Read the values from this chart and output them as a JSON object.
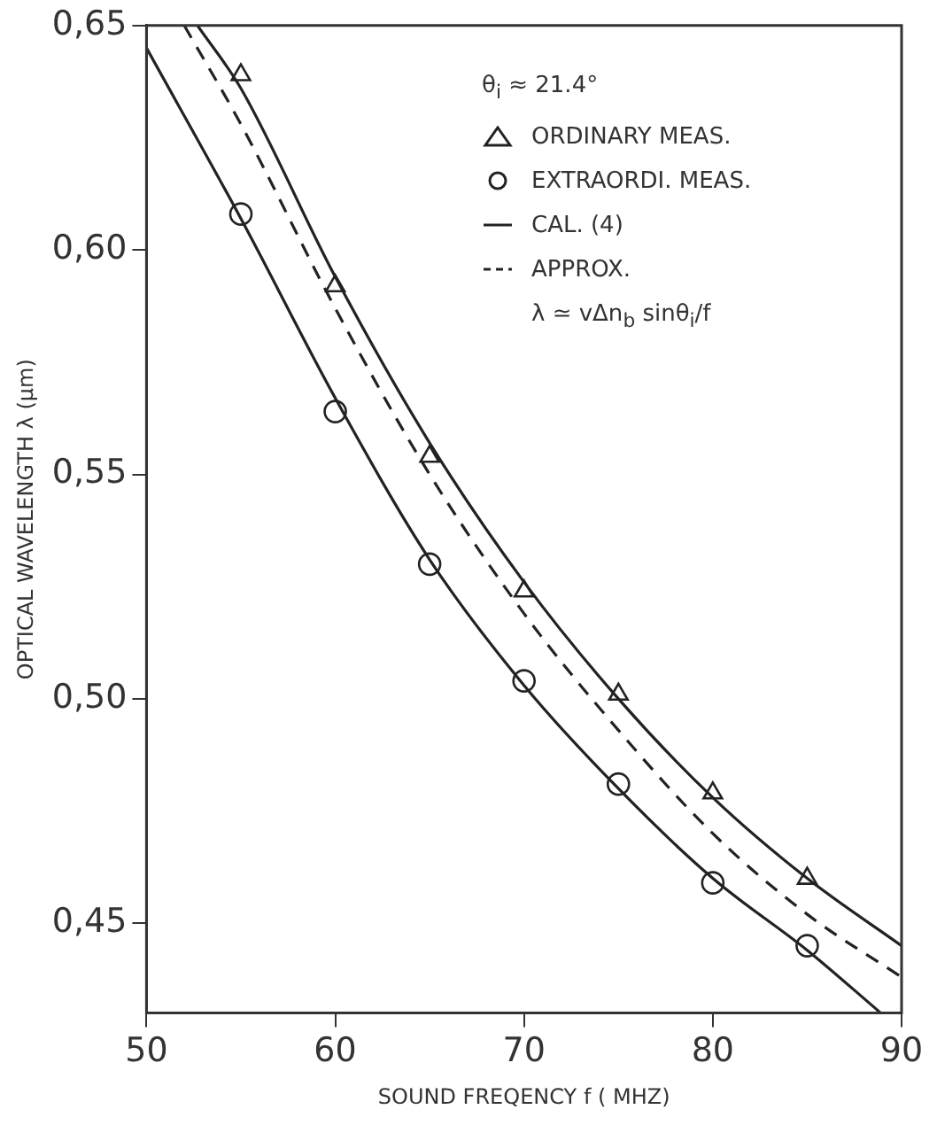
{
  "chart_data": {
    "type": "line",
    "xlabel": "SOUND FREQENCY f ( MHZ)",
    "ylabel": "OPTICAL WAVELENGTH λ (μm)",
    "xlim": [
      50,
      90
    ],
    "xticks": [
      50,
      60,
      70,
      80,
      90
    ],
    "ylim": [
      0.43,
      0.65
    ],
    "yticks": [
      {
        "value": 0.45,
        "label": "0,45"
      },
      {
        "value": 0.5,
        "label": "0,50"
      },
      {
        "value": 0.55,
        "label": "0,55"
      },
      {
        "value": 0.6,
        "label": "0,60"
      },
      {
        "value": 0.65,
        "label": "0,65"
      }
    ],
    "grid": false,
    "legend": "top right",
    "annotations": [
      "θ$_{i}$ ≈ 21.4°",
      "λ ≃ vΔn$_{b}$ sinθ$_{i}$/f"
    ],
    "series": [
      {
        "name": "ORDINARY MEAS.",
        "type": "scatter",
        "marker": "triangle",
        "color": "#222222",
        "x": [
          55,
          60,
          65,
          70,
          75,
          80,
          85
        ],
        "values": [
          0.639,
          0.592,
          0.554,
          0.524,
          0.501,
          0.479,
          0.46
        ]
      },
      {
        "name": "EXTRAORDI. MEAS.",
        "type": "scatter",
        "marker": "circle",
        "color": "#222222",
        "x": [
          55,
          60,
          65,
          70,
          75,
          80,
          85
        ],
        "values": [
          0.608,
          0.564,
          0.53,
          0.504,
          0.481,
          0.459,
          0.445
        ]
      },
      {
        "name": "CAL. (4)",
        "marker": "none",
        "line_style": "solid",
        "color": "#222222",
        "x": [
          52.7,
          55,
          60,
          65,
          70,
          75,
          80,
          85,
          90
        ],
        "values": [
          0.65,
          0.636,
          0.594,
          0.557,
          0.526,
          0.5,
          0.478,
          0.46,
          0.445
        ]
      },
      {
        "name": "APPROX.",
        "marker": "none",
        "line_style": "dashed",
        "color": "#222222",
        "x": [
          52,
          55,
          60,
          65,
          70,
          75,
          80,
          85,
          90
        ],
        "values": [
          0.65,
          0.628,
          0.587,
          0.55,
          0.519,
          0.493,
          0.47,
          0.452,
          0.438
        ]
      },
      {
        "marker": "none",
        "line_style": "solid",
        "color": "#222222",
        "x": [
          50,
          55,
          60,
          65,
          70,
          75,
          80,
          85,
          88.9
        ],
        "values": [
          0.645,
          0.607,
          0.567,
          0.531,
          0.503,
          0.48,
          0.46,
          0.444,
          0.43
        ]
      }
    ]
  }
}
